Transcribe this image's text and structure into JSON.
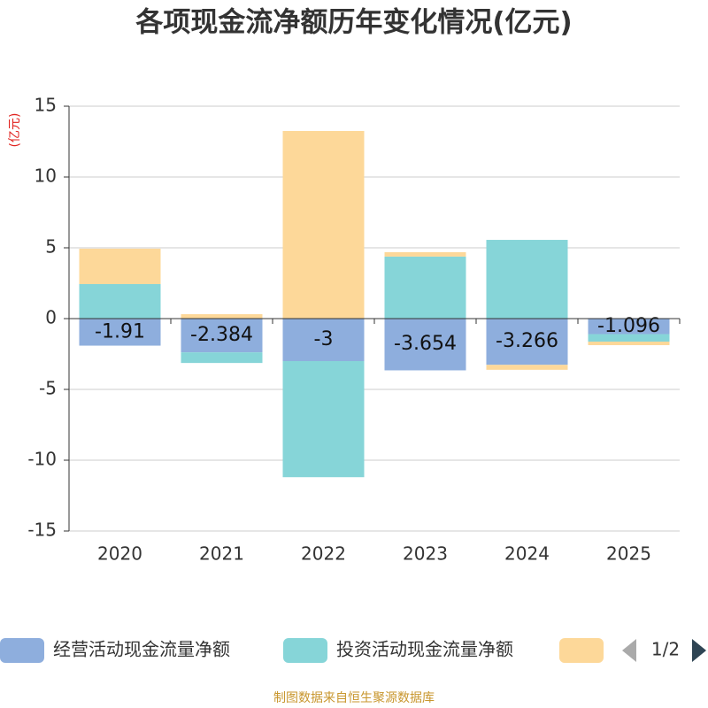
{
  "chart_data": {
    "type": "bar",
    "stacked": true,
    "title": "各项现金流净额历年变化情况(亿元)",
    "y_label": "(亿元)",
    "source": "制图数据来自恒生聚源数据库",
    "legend_page": "1/2",
    "categories": [
      "2020",
      "2021",
      "2022",
      "2023",
      "2024",
      "2025"
    ],
    "series": [
      {
        "name": "经营活动现金流量净额",
        "color": "#8eaedd",
        "values": [
          -1.91,
          -2.384,
          -3,
          -3.654,
          -3.266,
          -1.096
        ],
        "show_labels": true
      },
      {
        "name": "投资活动现金流量净额",
        "color": "#86d5d8",
        "values": [
          2.44,
          -0.75,
          -8.2,
          4.38,
          5.56,
          -0.53
        ]
      },
      {
        "color": "#fdd899",
        "values": [
          2.5,
          0.31,
          13.25,
          0.31,
          -0.35,
          -0.25
        ]
      }
    ],
    "ylim": [
      -15,
      15
    ],
    "yticks": [
      -15,
      -10,
      -5,
      0,
      5,
      10,
      15
    ],
    "grid": true
  }
}
